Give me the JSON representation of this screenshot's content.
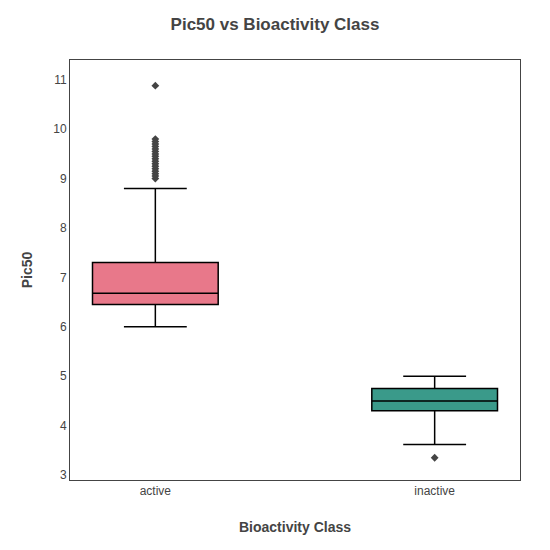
{
  "chart_data": {
    "type": "box",
    "title": "Pic50 vs Bioactivity Class",
    "xlabel": "Bioactivity Class",
    "ylabel": "Pic50",
    "categories": [
      "active",
      "inactive"
    ],
    "colors": [
      "#E8788A",
      "#3A9A8A"
    ],
    "q1": [
      6.45,
      4.3
    ],
    "median": [
      6.68,
      4.5
    ],
    "q3": [
      7.3,
      4.75
    ],
    "whisker_low": [
      6.0,
      3.62
    ],
    "whisker_high": [
      8.8,
      5.0
    ],
    "outliers": {
      "values": [
        [
          9.0,
          9.05,
          9.1,
          9.15,
          9.2,
          9.25,
          9.3,
          9.35,
          9.4,
          9.45,
          9.5,
          9.55,
          9.6,
          9.65,
          9.7,
          9.75,
          9.8,
          10.88
        ],
        [
          3.35
        ]
      ],
      "color": "#444444",
      "marker": "diamond"
    },
    "ylim": [
      2.9,
      11.4
    ],
    "yticks": [
      3,
      4,
      5,
      6,
      7,
      8,
      9,
      10,
      11
    ],
    "grid": false
  }
}
